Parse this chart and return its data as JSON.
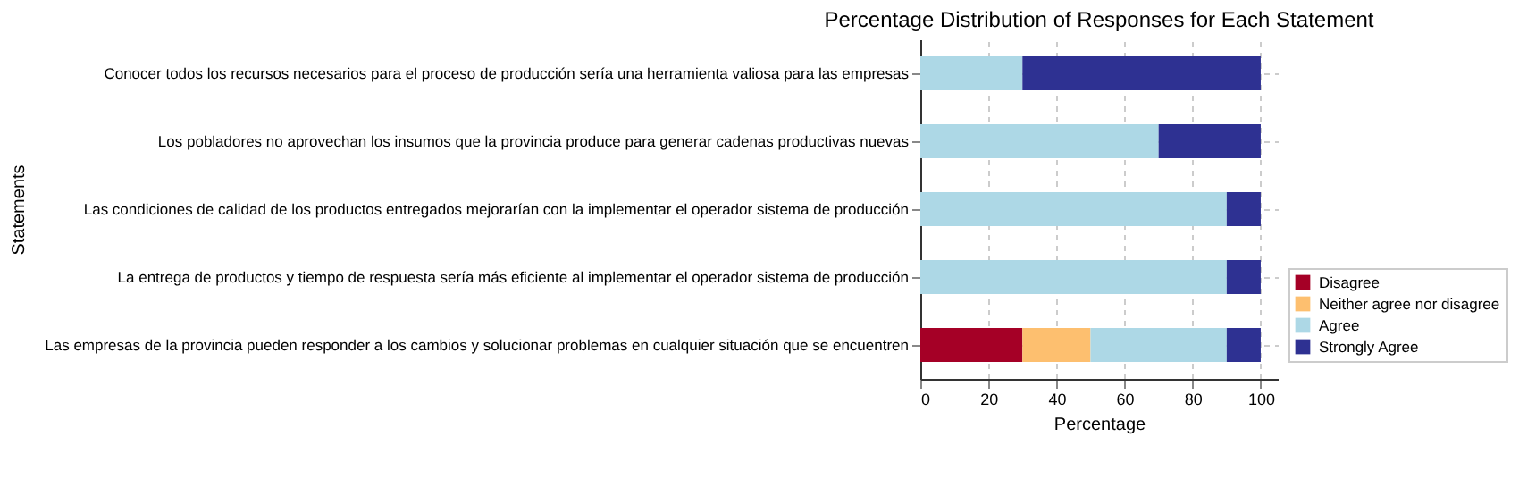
{
  "chart_data": {
    "type": "bar",
    "orientation": "horizontal",
    "stacked": true,
    "title": "Percentage Distribution of Responses for Each Statement",
    "xlabel": "Percentage",
    "ylabel": "Statements",
    "categories": [
      "Conocer todos los recursos necesarios para el proceso de producción sería una herramienta valiosa para las empresas",
      "Los pobladores no aprovechan los insumos que la provincia produce para generar cadenas productivas nuevas",
      "Las condiciones de calidad de los productos entregados mejorarían con la implementar el operador sistema de producción",
      "La entrega de productos y tiempo de respuesta sería más eficiente al implementar el operador sistema de producción",
      "Las empresas de la provincia pueden responder a los cambios y solucionar problemas en cualquier situación que se encuentren"
    ],
    "series": [
      {
        "name": "Disagree",
        "color": "#a50026",
        "values": [
          null,
          null,
          null,
          null,
          30
        ]
      },
      {
        "name": "Neither agree nor disagree",
        "color": "#fdbf6f",
        "values": [
          null,
          null,
          null,
          null,
          20
        ]
      },
      {
        "name": "Agree",
        "color": "#add8e6",
        "values": [
          30,
          70,
          90,
          90,
          40
        ]
      },
      {
        "name": "Strongly Agree",
        "color": "#2e3192",
        "values": [
          70,
          30,
          10,
          10,
          10
        ]
      }
    ],
    "xlim": [
      0,
      105
    ],
    "xticks": [
      0,
      20,
      40,
      60,
      80,
      100
    ],
    "grid": true,
    "legend": "bottom right"
  }
}
